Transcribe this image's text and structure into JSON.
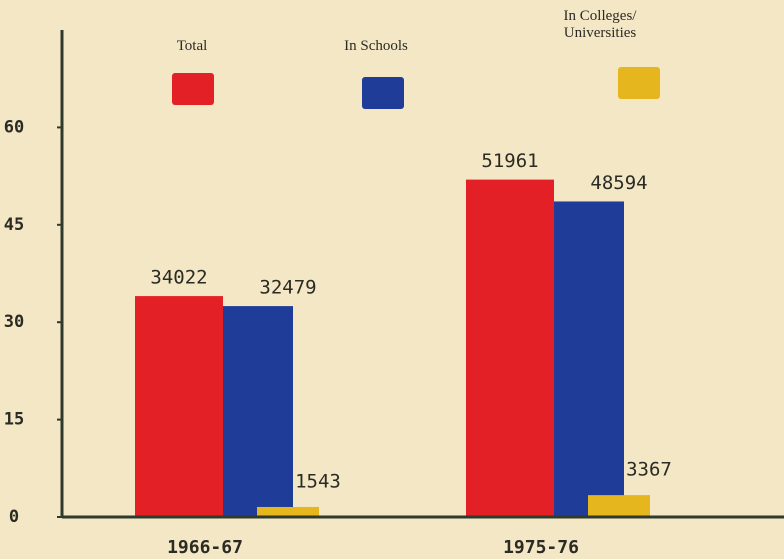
{
  "chart_data": {
    "type": "bar",
    "categories": [
      "1966-67",
      "1975-76"
    ],
    "series": [
      {
        "name": "Total",
        "color": "#e42027",
        "values": [
          34.022,
          51.961
        ],
        "value_labels": [
          "34022",
          "51961"
        ]
      },
      {
        "name": "In Schools",
        "color": "#1f3d98",
        "values": [
          32.479,
          48.594
        ],
        "value_labels": [
          "32479",
          "48594"
        ]
      },
      {
        "name": "In Colleges/ Universities",
        "color": "#e5b61d",
        "values": [
          1.543,
          3.367
        ],
        "value_labels": [
          "1543",
          "3367"
        ]
      }
    ],
    "ylim": [
      0,
      75
    ],
    "yticks": [
      0,
      15,
      30,
      45,
      60
    ],
    "grid": false
  }
}
